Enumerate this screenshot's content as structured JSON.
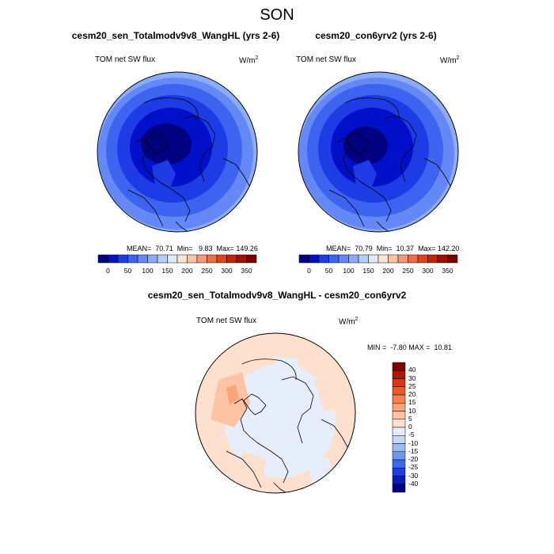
{
  "season": "SON",
  "panel1": {
    "title": "cesm20_sen_Totalmodv9v8_WangHL (yrs 2-6)",
    "var_label": "TOM net SW flux",
    "units_base": "W/m",
    "units_exp": "2",
    "stats": "MEAN=  70.71  Min=   9.83  Max= 149.26"
  },
  "panel2": {
    "title": "cesm20_con6yrv2 (yrs 2-6)",
    "var_label": "TOM net SW flux",
    "units_base": "W/m",
    "units_exp": "2",
    "stats": "MEAN=  70.79  Min=  10.37  Max= 142.20"
  },
  "panel3": {
    "title": "cesm20_sen_Totalmodv9v8_WangHL - cesm20_con6yrv2",
    "var_label": "TOM net SW flux",
    "units_base": "W/m",
    "units_exp": "2",
    "stats": "MIN =  -7.80 MAX =  10.81"
  },
  "abs_colorbar": {
    "ticks": [
      "0",
      "50",
      "100",
      "150",
      "200",
      "250",
      "300",
      "350"
    ],
    "colors": [
      "#000080",
      "#0010c8",
      "#1e3ce6",
      "#3c64f0",
      "#6488f5",
      "#8cacfa",
      "#b4cffc",
      "#dcebfd",
      "#fde3d2",
      "#fbc4a6",
      "#f59a78",
      "#ee6e4c",
      "#e3421f",
      "#c82306",
      "#a00f00",
      "#780000"
    ]
  },
  "diff_colorbar": {
    "ticks": [
      "40",
      "30",
      "25",
      "20",
      "15",
      "10",
      "5",
      "0",
      "-5",
      "-10",
      "-15",
      "-20",
      "-25",
      "-30",
      "-40"
    ],
    "colors": [
      "#800000",
      "#b41400",
      "#dc3512",
      "#ee5a2a",
      "#f58050",
      "#faa47a",
      "#fcc4a4",
      "#fde0ce",
      "#e6eefc",
      "#c4d8fa",
      "#9cbcf6",
      "#6e98f0",
      "#3c6ae6",
      "#1e40d8",
      "#0a1cb4",
      "#000080"
    ]
  }
}
